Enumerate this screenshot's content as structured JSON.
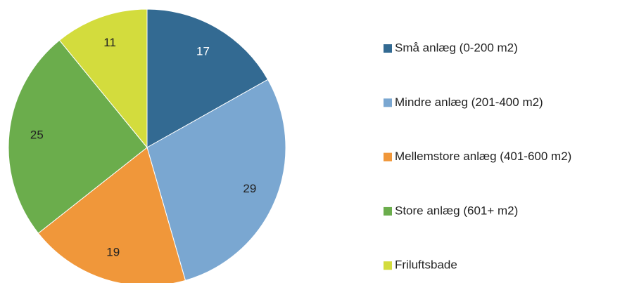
{
  "chart_data": {
    "type": "pie",
    "categories": [
      "Små anlæg (0-200 m2)",
      "Mindre anlæg (201-400 m2)",
      "Mellemstore anlæg (401-600 m2)",
      "Store anlæg (601+ m2)",
      "Friluftsbade"
    ],
    "values": [
      17,
      29,
      19,
      25,
      11
    ],
    "colors": [
      "#336a92",
      "#7aa7d1",
      "#f0973a",
      "#6bad4c",
      "#d3dc3d"
    ],
    "legend": "right"
  }
}
